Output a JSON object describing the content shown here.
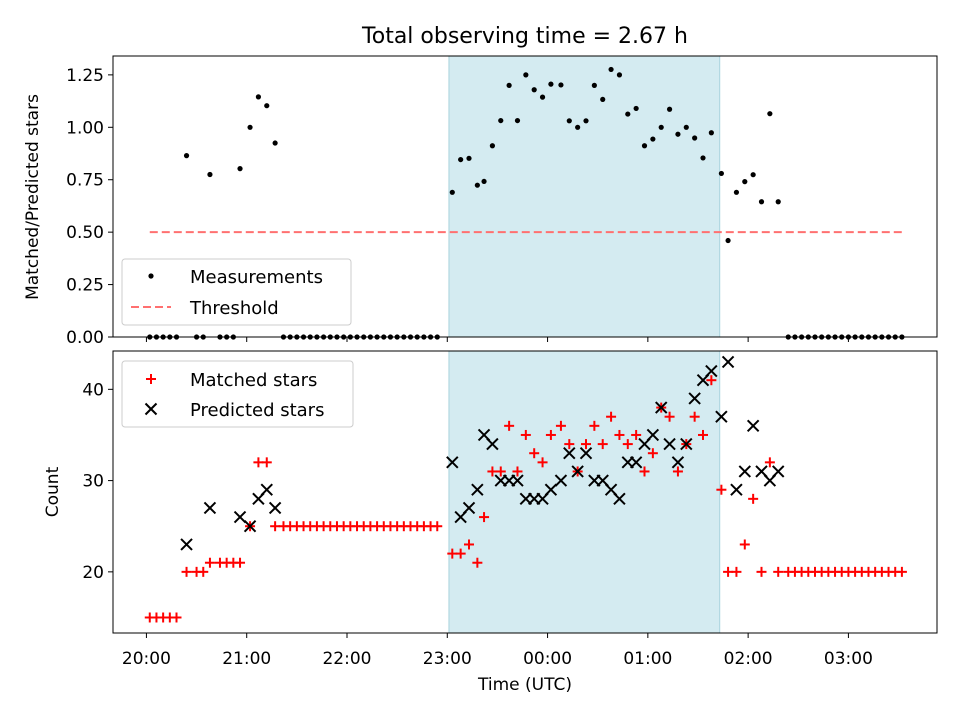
{
  "colors": {
    "measurement": "#000000",
    "threshold": "#ff7070",
    "matched": "#ff0000",
    "predicted": "#000000",
    "shade": "#d4ebf1"
  },
  "chart_data": [
    {
      "type": "scatter",
      "title": "Total observing time = 2.67 h",
      "ylabel": "Matched/Predicted stars",
      "xlabel": "",
      "xlim": [
        "19:40",
        "03:53"
      ],
      "ylim": [
        0,
        1.34
      ],
      "yticks": [
        0.0,
        0.25,
        0.5,
        0.75,
        1.0,
        1.25
      ],
      "ytick_labels": [
        "0.00",
        "0.25",
        "0.50",
        "0.75",
        "1.00",
        "1.25"
      ],
      "shaded_interval": [
        "23:01",
        "01:43"
      ],
      "legend": {
        "placement": "lower-left",
        "entries": [
          "Measurements",
          "Threshold"
        ]
      },
      "series": [
        {
          "name": "Measurements",
          "points": [
            [
              "20:02",
              0
            ],
            [
              "20:06",
              0
            ],
            [
              "20:10",
              0
            ],
            [
              "20:14",
              0
            ],
            [
              "20:18",
              0
            ],
            [
              "20:24",
              0.865
            ],
            [
              "20:30",
              0
            ],
            [
              "20:34",
              0
            ],
            [
              "20:38",
              0.775
            ],
            [
              "20:44",
              0
            ],
            [
              "20:48",
              0
            ],
            [
              "20:52",
              0
            ],
            [
              "20:56",
              0.803
            ],
            [
              "21:02",
              1.0
            ],
            [
              "21:07",
              1.145
            ],
            [
              "21:12",
              1.103
            ],
            [
              "21:17",
              0.925
            ],
            [
              "21:22",
              0
            ],
            [
              "21:26",
              0
            ],
            [
              "21:30",
              0
            ],
            [
              "21:34",
              0
            ],
            [
              "21:38",
              0
            ],
            [
              "21:42",
              0
            ],
            [
              "21:46",
              0
            ],
            [
              "21:50",
              0
            ],
            [
              "21:54",
              0
            ],
            [
              "21:58",
              0
            ],
            [
              "22:02",
              0
            ],
            [
              "22:06",
              0
            ],
            [
              "22:10",
              0
            ],
            [
              "22:14",
              0
            ],
            [
              "22:18",
              0
            ],
            [
              "22:22",
              0
            ],
            [
              "22:26",
              0
            ],
            [
              "22:30",
              0
            ],
            [
              "22:34",
              0
            ],
            [
              "22:38",
              0
            ],
            [
              "22:42",
              0
            ],
            [
              "22:46",
              0
            ],
            [
              "22:50",
              0
            ],
            [
              "22:54",
              0
            ],
            [
              "23:03",
              0.69
            ],
            [
              "23:08",
              0.846
            ],
            [
              "23:13",
              0.852
            ],
            [
              "23:18",
              0.724
            ],
            [
              "23:22",
              0.742
            ],
            [
              "23:27",
              0.912
            ],
            [
              "23:32",
              1.032
            ],
            [
              "23:37",
              1.2
            ],
            [
              "23:42",
              1.032
            ],
            [
              "23:47",
              1.25
            ],
            [
              "23:52",
              1.179
            ],
            [
              "23:57",
              1.144
            ],
            [
              "00:02",
              1.206
            ],
            [
              "00:08",
              1.202
            ],
            [
              "00:13",
              1.031
            ],
            [
              "00:18",
              1.0
            ],
            [
              "00:23",
              1.031
            ],
            [
              "00:28",
              1.2
            ],
            [
              "00:33",
              1.133
            ],
            [
              "00:38",
              1.276
            ],
            [
              "00:43",
              1.25
            ],
            [
              "00:48",
              1.063
            ],
            [
              "00:53",
              1.09
            ],
            [
              "00:58",
              0.912
            ],
            [
              "01:03",
              0.944
            ],
            [
              "01:08",
              1.0
            ],
            [
              "01:13",
              1.086
            ],
            [
              "01:18",
              0.967
            ],
            [
              "01:23",
              1.0
            ],
            [
              "01:28",
              0.949
            ],
            [
              "01:33",
              0.854
            ],
            [
              "01:38",
              0.974
            ],
            [
              "01:44",
              0.78
            ],
            [
              "01:48",
              0.46
            ],
            [
              "01:53",
              0.69
            ],
            [
              "01:58",
              0.741
            ],
            [
              "02:03",
              0.774
            ],
            [
              "02:08",
              0.645
            ],
            [
              "02:13",
              1.065
            ],
            [
              "02:18",
              0.645
            ],
            [
              "02:24",
              0
            ],
            [
              "02:28",
              0
            ],
            [
              "02:32",
              0
            ],
            [
              "02:36",
              0
            ],
            [
              "02:40",
              0
            ],
            [
              "02:44",
              0
            ],
            [
              "02:48",
              0
            ],
            [
              "02:52",
              0
            ],
            [
              "02:56",
              0
            ],
            [
              "03:00",
              0
            ],
            [
              "03:04",
              0
            ],
            [
              "03:08",
              0
            ],
            [
              "03:12",
              0
            ],
            [
              "03:16",
              0
            ],
            [
              "03:20",
              0
            ],
            [
              "03:24",
              0
            ],
            [
              "03:28",
              0
            ],
            [
              "03:32",
              0
            ]
          ]
        },
        {
          "name": "Threshold",
          "line": [
            [
              "20:02",
              0.5
            ],
            [
              "03:32",
              0.5
            ]
          ]
        }
      ]
    },
    {
      "type": "scatter",
      "title": "",
      "xlabel": "Time (UTC)",
      "ylabel": "Count",
      "xlim": [
        "19:40",
        "03:53"
      ],
      "ylim": [
        13.3,
        44.2
      ],
      "yticks": [
        20,
        30,
        40
      ],
      "xticks": [
        "20:00",
        "21:00",
        "22:00",
        "23:00",
        "00:00",
        "01:00",
        "02:00",
        "03:00"
      ],
      "shaded_interval": [
        "23:01",
        "01:43"
      ],
      "legend": {
        "placement": "upper-left",
        "entries": [
          "Matched stars",
          "Predicted stars"
        ]
      },
      "series": [
        {
          "name": "Matched stars",
          "points": [
            [
              "20:02",
              15
            ],
            [
              "20:06",
              15
            ],
            [
              "20:10",
              15
            ],
            [
              "20:14",
              15
            ],
            [
              "20:18",
              15
            ],
            [
              "20:24",
              20
            ],
            [
              "20:30",
              20
            ],
            [
              "20:34",
              20
            ],
            [
              "20:38",
              21
            ],
            [
              "20:44",
              21
            ],
            [
              "20:48",
              21
            ],
            [
              "20:52",
              21
            ],
            [
              "20:56",
              21
            ],
            [
              "21:02",
              25
            ],
            [
              "21:07",
              32
            ],
            [
              "21:12",
              32
            ],
            [
              "21:17",
              25
            ],
            [
              "21:22",
              25
            ],
            [
              "21:26",
              25
            ],
            [
              "21:30",
              25
            ],
            [
              "21:34",
              25
            ],
            [
              "21:38",
              25
            ],
            [
              "21:42",
              25
            ],
            [
              "21:46",
              25
            ],
            [
              "21:50",
              25
            ],
            [
              "21:54",
              25
            ],
            [
              "21:58",
              25
            ],
            [
              "22:02",
              25
            ],
            [
              "22:06",
              25
            ],
            [
              "22:10",
              25
            ],
            [
              "22:14",
              25
            ],
            [
              "22:18",
              25
            ],
            [
              "22:22",
              25
            ],
            [
              "22:26",
              25
            ],
            [
              "22:30",
              25
            ],
            [
              "22:34",
              25
            ],
            [
              "22:38",
              25
            ],
            [
              "22:42",
              25
            ],
            [
              "22:46",
              25
            ],
            [
              "22:50",
              25
            ],
            [
              "22:54",
              25
            ],
            [
              "23:03",
              22
            ],
            [
              "23:08",
              22
            ],
            [
              "23:13",
              23
            ],
            [
              "23:18",
              21
            ],
            [
              "23:22",
              26
            ],
            [
              "23:27",
              31
            ],
            [
              "23:32",
              31
            ],
            [
              "23:37",
              36
            ],
            [
              "23:42",
              31
            ],
            [
              "23:47",
              35
            ],
            [
              "23:52",
              33
            ],
            [
              "23:57",
              32
            ],
            [
              "00:02",
              35
            ],
            [
              "00:08",
              36
            ],
            [
              "00:13",
              34
            ],
            [
              "00:18",
              31
            ],
            [
              "00:23",
              34
            ],
            [
              "00:28",
              36
            ],
            [
              "00:33",
              34
            ],
            [
              "00:38",
              37
            ],
            [
              "00:43",
              35
            ],
            [
              "00:48",
              34
            ],
            [
              "00:53",
              35
            ],
            [
              "00:58",
              31
            ],
            [
              "01:03",
              33
            ],
            [
              "01:08",
              38
            ],
            [
              "01:13",
              37
            ],
            [
              "01:18",
              31
            ],
            [
              "01:23",
              34
            ],
            [
              "01:28",
              37
            ],
            [
              "01:33",
              35
            ],
            [
              "01:38",
              41
            ],
            [
              "01:44",
              29
            ],
            [
              "01:48",
              20
            ],
            [
              "01:53",
              20
            ],
            [
              "01:58",
              23
            ],
            [
              "02:03",
              28
            ],
            [
              "02:08",
              20
            ],
            [
              "02:13",
              32
            ],
            [
              "02:18",
              20
            ],
            [
              "02:24",
              20
            ],
            [
              "02:28",
              20
            ],
            [
              "02:32",
              20
            ],
            [
              "02:36",
              20
            ],
            [
              "02:40",
              20
            ],
            [
              "02:44",
              20
            ],
            [
              "02:48",
              20
            ],
            [
              "02:52",
              20
            ],
            [
              "02:56",
              20
            ],
            [
              "03:00",
              20
            ],
            [
              "03:04",
              20
            ],
            [
              "03:08",
              20
            ],
            [
              "03:12",
              20
            ],
            [
              "03:16",
              20
            ],
            [
              "03:20",
              20
            ],
            [
              "03:24",
              20
            ],
            [
              "03:28",
              20
            ],
            [
              "03:32",
              20
            ]
          ]
        },
        {
          "name": "Predicted stars",
          "points": [
            [
              "20:24",
              23
            ],
            [
              "20:38",
              27
            ],
            [
              "20:56",
              26
            ],
            [
              "21:02",
              25
            ],
            [
              "21:07",
              28
            ],
            [
              "21:12",
              29
            ],
            [
              "21:17",
              27
            ],
            [
              "23:03",
              32
            ],
            [
              "23:08",
              26
            ],
            [
              "23:13",
              27
            ],
            [
              "23:18",
              29
            ],
            [
              "23:22",
              35
            ],
            [
              "23:27",
              34
            ],
            [
              "23:32",
              30
            ],
            [
              "23:37",
              30
            ],
            [
              "23:42",
              30
            ],
            [
              "23:47",
              28
            ],
            [
              "23:52",
              28
            ],
            [
              "23:57",
              28
            ],
            [
              "00:02",
              29
            ],
            [
              "00:08",
              30
            ],
            [
              "00:13",
              33
            ],
            [
              "00:18",
              31
            ],
            [
              "00:23",
              33
            ],
            [
              "00:28",
              30
            ],
            [
              "00:33",
              30
            ],
            [
              "00:38",
              29
            ],
            [
              "00:43",
              28
            ],
            [
              "00:48",
              32
            ],
            [
              "00:53",
              32
            ],
            [
              "00:58",
              34
            ],
            [
              "01:03",
              35
            ],
            [
              "01:08",
              38
            ],
            [
              "01:13",
              34
            ],
            [
              "01:18",
              32
            ],
            [
              "01:23",
              34
            ],
            [
              "01:28",
              39
            ],
            [
              "01:33",
              41
            ],
            [
              "01:38",
              42
            ],
            [
              "01:44",
              37
            ],
            [
              "01:48",
              43
            ],
            [
              "01:53",
              29
            ],
            [
              "01:58",
              31
            ],
            [
              "02:03",
              36
            ],
            [
              "02:08",
              31
            ],
            [
              "02:13",
              30
            ],
            [
              "02:18",
              31
            ]
          ]
        }
      ]
    }
  ]
}
